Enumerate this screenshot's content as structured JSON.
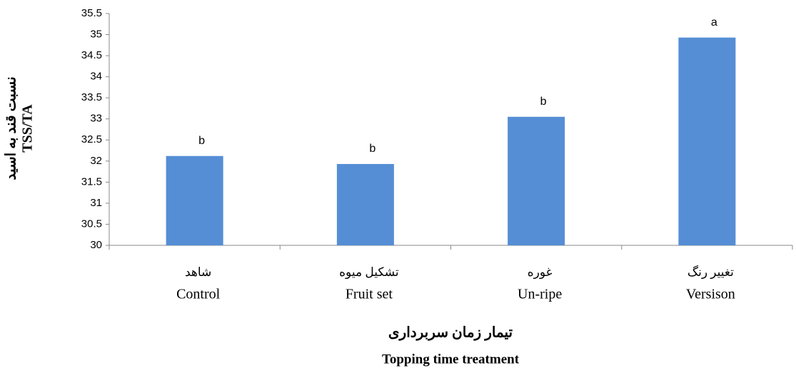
{
  "chart_data": {
    "type": "bar",
    "categories": [
      "Control",
      "Fruit set",
      "Un-ripe",
      "Versison"
    ],
    "categories_fa": [
      "شاهد",
      "تشکیل میوه",
      "غوره",
      "تغییر رنگ"
    ],
    "values": [
      32.12,
      31.93,
      33.05,
      34.93
    ],
    "annotations": [
      "b",
      "b",
      "b",
      "a"
    ],
    "color": "#558ed5",
    "ylim": [
      30,
      35.5
    ],
    "yticks": [
      30,
      30.5,
      31,
      31.5,
      32,
      32.5,
      33,
      33.5,
      34,
      34.5,
      35,
      35.5
    ],
    "x_label_fa": "تیمار زمان سربرداری",
    "x_label": "Topping time treatment",
    "y_label_fa": "نسبت قند به اسید",
    "y_label": "TSS/TA"
  }
}
